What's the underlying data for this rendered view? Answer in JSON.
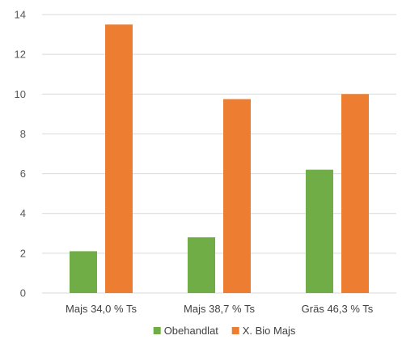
{
  "chart_data": {
    "type": "bar",
    "categories": [
      "Majs 34,0 % Ts",
      "Majs 38,7 % Ts",
      "Gräs 46,3 % Ts"
    ],
    "series": [
      {
        "name": "Obehandlat",
        "values": [
          2.1,
          2.8,
          6.2
        ],
        "color": "#70ad47"
      },
      {
        "name": "X. Bio Majs",
        "values": [
          13.5,
          9.75,
          10.0
        ],
        "color": "#ed7d31"
      }
    ],
    "ylim": [
      0,
      14
    ],
    "yticks": [
      0,
      2,
      4,
      6,
      8,
      10,
      12,
      14
    ],
    "grid": true,
    "legend": "bottom",
    "xlabel": "",
    "ylabel": "",
    "title": ""
  }
}
